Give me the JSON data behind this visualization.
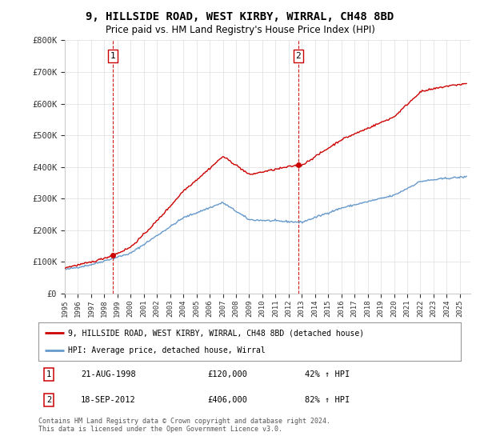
{
  "title": "9, HILLSIDE ROAD, WEST KIRBY, WIRRAL, CH48 8BD",
  "subtitle": "Price paid vs. HM Land Registry's House Price Index (HPI)",
  "ylabel_ticks": [
    "£0",
    "£100K",
    "£200K",
    "£300K",
    "£400K",
    "£500K",
    "£600K",
    "£700K",
    "£800K"
  ],
  "ylim": [
    0,
    800000
  ],
  "xlim_start": 1995.0,
  "xlim_end": 2025.8,
  "transaction1": {
    "date_num": 1998.64,
    "price": 120000,
    "label": "1",
    "date_str": "21-AUG-1998",
    "hpi_pct": "42% ↑ HPI"
  },
  "transaction2": {
    "date_num": 2012.72,
    "price": 406000,
    "label": "2",
    "date_str": "18-SEP-2012",
    "hpi_pct": "82% ↑ HPI"
  },
  "legend_line1": "9, HILLSIDE ROAD, WEST KIRBY, WIRRAL, CH48 8BD (detached house)",
  "legend_line2": "HPI: Average price, detached house, Wirral",
  "table_row1": [
    "1",
    "21-AUG-1998",
    "£120,000",
    "42% ↑ HPI"
  ],
  "table_row2": [
    "2",
    "18-SEP-2012",
    "£406,000",
    "82% ↑ HPI"
  ],
  "footer": "Contains HM Land Registry data © Crown copyright and database right 2024.\nThis data is licensed under the Open Government Licence v3.0.",
  "red_color": "#cc0000",
  "blue_color": "#6699cc",
  "dashed_color": "#cc0000",
  "background_color": "#ffffff",
  "grid_color": "#dddddd"
}
